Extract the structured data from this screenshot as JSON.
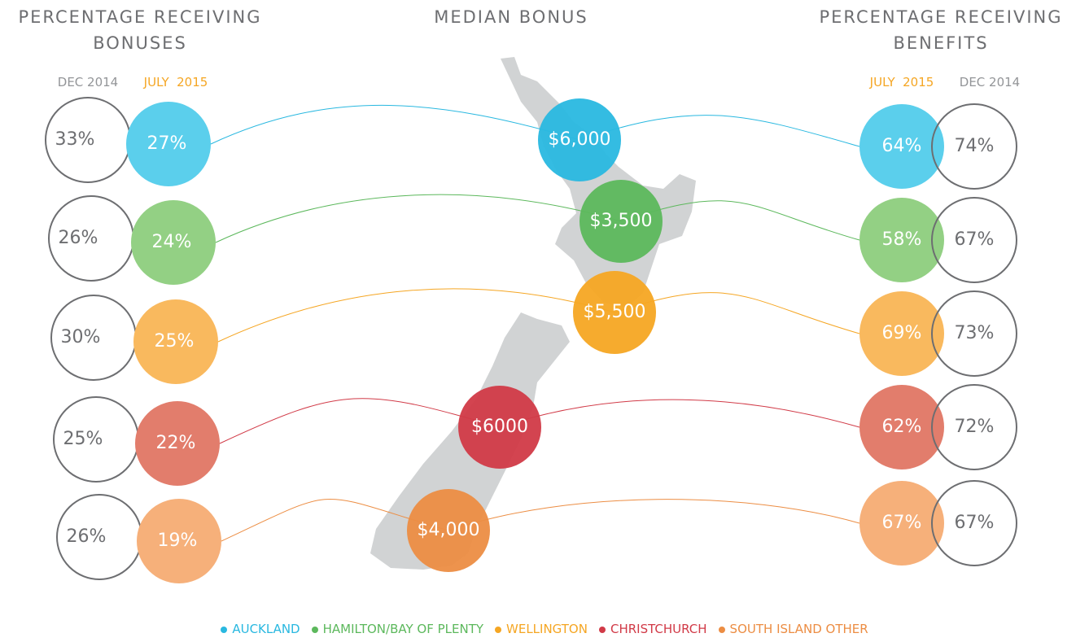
{
  "headings": {
    "left": [
      "PERCENTAGE RECEIVING",
      "BONUSES"
    ],
    "center": "MEDIAN BONUS",
    "right": [
      "PERCENTAGE RECEIVING",
      "BENEFITS"
    ]
  },
  "column_labels": {
    "left": {
      "dec": "DEC 2014",
      "july": "JULY  2015"
    },
    "right": {
      "july": "JULY  2015",
      "dec": "DEC 2014"
    }
  },
  "regions": [
    {
      "name": "AUCKLAND",
      "color": "#29b8e0",
      "light_color": "#5bcfec",
      "bonus_dec": "33%",
      "bonus_july": "27%",
      "median": "$6,000",
      "benefit_july": "64%",
      "benefit_dec": "74%"
    },
    {
      "name": "HAMILTON/BAY OF PLENTY",
      "color": "#5cb85c",
      "light_color": "#93d084",
      "bonus_dec": "26%",
      "bonus_july": "24%",
      "median": "$3,500",
      "benefit_july": "58%",
      "benefit_dec": "67%"
    },
    {
      "name": "WELLINGTON",
      "color": "#f5a623",
      "light_color": "#f9b95e",
      "bonus_dec": "30%",
      "bonus_july": "25%",
      "median": "$5,500",
      "benefit_july": "69%",
      "benefit_dec": "73%"
    },
    {
      "name": "CHRISTCHURCH",
      "color": "#d13a47",
      "light_color": "#e27d6c",
      "bonus_dec": "25%",
      "bonus_july": "22%",
      "median": "$6000",
      "benefit_july": "62%",
      "benefit_dec": "72%"
    },
    {
      "name": "SOUTH ISLAND OTHER",
      "color": "#ec8d43",
      "light_color": "#f6b07a",
      "bonus_dec": "26%",
      "bonus_july": "19%",
      "median": "$4,000",
      "benefit_july": "67%",
      "benefit_dec": "67%"
    }
  ]
}
